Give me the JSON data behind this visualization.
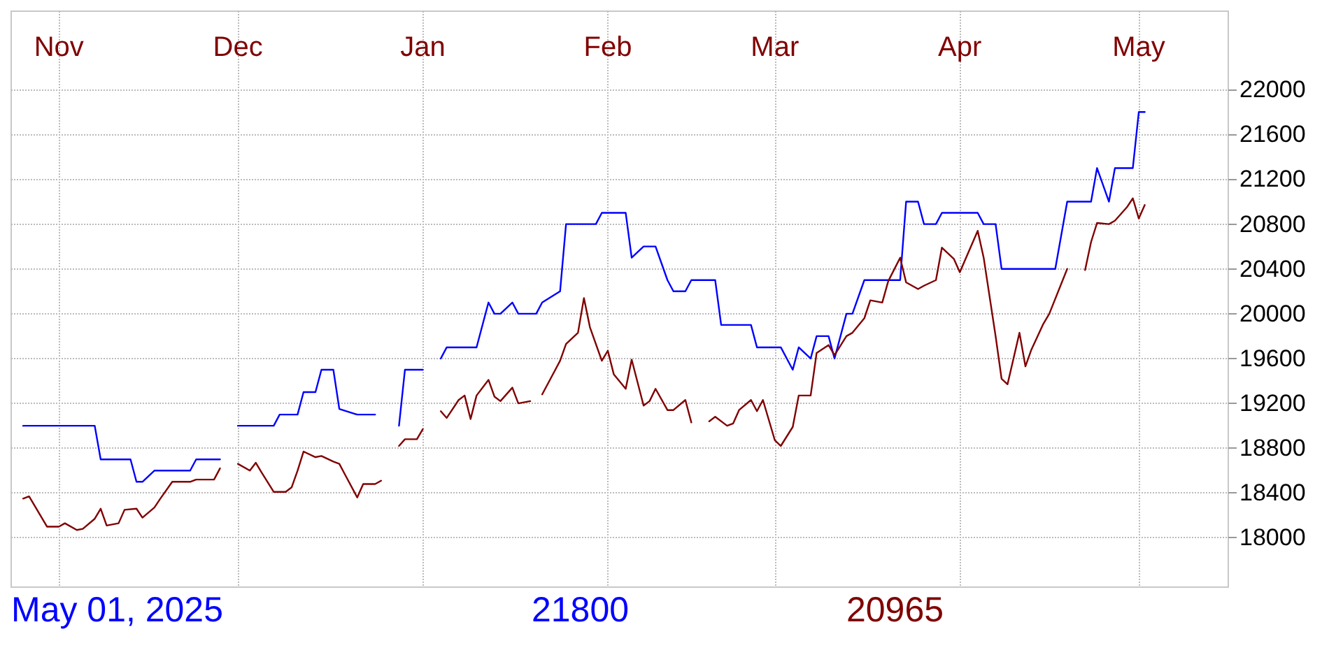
{
  "chart_data": {
    "type": "line",
    "xlim": [
      "2024-10-24",
      "2025-05-16"
    ],
    "ylim": [
      17560,
      22700
    ],
    "xticks": [
      {
        "value": "2024-11-01",
        "label": "Nov"
      },
      {
        "value": "2024-12-01",
        "label": "Dec"
      },
      {
        "value": "2025-01-01",
        "label": "Jan"
      },
      {
        "value": "2025-02-01",
        "label": "Feb"
      },
      {
        "value": "2025-03-01",
        "label": "Mar"
      },
      {
        "value": "2025-04-01",
        "label": "Apr"
      },
      {
        "value": "2025-05-01",
        "label": "May"
      }
    ],
    "yticks": [
      18000,
      18400,
      18800,
      19200,
      19600,
      20000,
      20400,
      20800,
      21200,
      21600,
      22000
    ],
    "grid": true,
    "marker": "none",
    "line_style": "solid",
    "annotations": [
      "May 01, 2025",
      "21800",
      "20965"
    ],
    "series": [
      {
        "color": "#0000ff",
        "x": [
          "2024-10-26",
          "2024-11-07",
          "2024-11-08",
          "2024-11-13",
          "2024-11-14",
          "2024-11-15",
          "2024-11-17",
          "2024-11-23",
          "2024-11-24",
          "2024-11-28",
          "2024-11-30",
          "2024-12-01",
          "2024-12-07",
          "2024-12-08",
          "2024-12-11",
          "2024-12-12",
          "2024-12-14",
          "2024-12-15",
          "2024-12-17",
          "2024-12-18",
          "2024-12-21",
          "2024-12-24",
          "2024-12-26",
          "2024-12-28",
          "2024-12-29",
          "2025-01-01",
          "2025-01-03",
          "2025-01-04",
          "2025-01-05",
          "2025-01-10",
          "2025-01-12",
          "2025-01-13",
          "2025-01-14",
          "2025-01-16",
          "2025-01-17",
          "2025-01-20",
          "2025-01-21",
          "2025-01-24",
          "2025-01-25",
          "2025-01-30",
          "2025-01-31",
          "2025-02-04",
          "2025-02-05",
          "2025-02-07",
          "2025-02-09",
          "2025-02-11",
          "2025-02-12",
          "2025-02-14",
          "2025-02-15",
          "2025-02-19",
          "2025-02-20",
          "2025-02-25",
          "2025-02-26",
          "2025-03-02",
          "2025-03-04",
          "2025-03-05",
          "2025-03-07",
          "2025-03-08",
          "2025-03-10",
          "2025-03-11",
          "2025-03-13",
          "2025-03-14",
          "2025-03-16",
          "2025-03-22",
          "2025-03-23",
          "2025-03-25",
          "2025-03-26",
          "2025-03-28",
          "2025-03-29",
          "2025-04-04",
          "2025-04-05",
          "2025-04-07",
          "2025-04-08",
          "2025-04-17",
          "2025-04-19",
          "2025-04-23",
          "2025-04-24",
          "2025-04-26",
          "2025-04-27",
          "2025-04-30",
          "2025-05-01",
          "2025-05-02"
        ],
        "values": [
          19000,
          19000,
          18700,
          18700,
          18500,
          18500,
          18600,
          18600,
          18700,
          18700,
          null,
          19000,
          19000,
          19100,
          19100,
          19300,
          19300,
          19500,
          19500,
          19150,
          19100,
          19100,
          null,
          19000,
          19500,
          19500,
          null,
          19600,
          19700,
          19700,
          20100,
          20000,
          20000,
          20100,
          20000,
          20000,
          20100,
          20200,
          20800,
          20800,
          20900,
          20900,
          20500,
          20600,
          20600,
          20300,
          20200,
          20200,
          20300,
          20300,
          19900,
          19900,
          19700,
          19700,
          19500,
          19700,
          19600,
          19800,
          19800,
          19600,
          20000,
          20000,
          20300,
          20300,
          21000,
          21000,
          20800,
          20800,
          20900,
          20900,
          20800,
          20800,
          20400,
          20400,
          21000,
          21000,
          21300,
          21000,
          21300,
          21300,
          21800,
          21800
        ]
      },
      {
        "color": "#800000",
        "x": [
          "2024-10-26",
          "2024-10-27",
          "2024-10-30",
          "2024-11-01",
          "2024-11-02",
          "2024-11-04",
          "2024-11-05",
          "2024-11-07",
          "2024-11-08",
          "2024-11-09",
          "2024-11-11",
          "2024-11-12",
          "2024-11-14",
          "2024-11-15",
          "2024-11-17",
          "2024-11-18",
          "2024-11-20",
          "2024-11-23",
          "2024-11-24",
          "2024-11-27",
          "2024-11-28",
          "2024-11-30",
          "2024-12-01",
          "2024-12-03",
          "2024-12-04",
          "2024-12-05",
          "2024-12-07",
          "2024-12-09",
          "2024-12-10",
          "2024-12-11",
          "2024-12-12",
          "2024-12-14",
          "2024-12-15",
          "2024-12-17",
          "2024-12-18",
          "2024-12-19",
          "2024-12-21",
          "2024-12-22",
          "2024-12-24",
          "2024-12-25",
          "2024-12-27",
          "2024-12-28",
          "2024-12-29",
          "2024-12-31",
          "2025-01-01",
          "2025-01-03",
          "2025-01-04",
          "2025-01-05",
          "2025-01-07",
          "2025-01-08",
          "2025-01-09",
          "2025-01-10",
          "2025-01-12",
          "2025-01-13",
          "2025-01-14",
          "2025-01-16",
          "2025-01-17",
          "2025-01-19",
          "2025-01-20",
          "2025-01-21",
          "2025-01-23",
          "2025-01-24",
          "2025-01-25",
          "2025-01-27",
          "2025-01-28",
          "2025-01-29",
          "2025-01-31",
          "2025-02-01",
          "2025-02-02",
          "2025-02-04",
          "2025-02-05",
          "2025-02-07",
          "2025-02-08",
          "2025-02-09",
          "2025-02-11",
          "2025-02-12",
          "2025-02-14",
          "2025-02-15",
          "2025-02-17",
          "2025-02-18",
          "2025-02-19",
          "2025-02-21",
          "2025-02-22",
          "2025-02-23",
          "2025-02-25",
          "2025-02-26",
          "2025-02-27",
          "2025-03-01",
          "2025-03-02",
          "2025-03-04",
          "2025-03-05",
          "2025-03-07",
          "2025-03-08",
          "2025-03-10",
          "2025-03-11",
          "2025-03-13",
          "2025-03-14",
          "2025-03-16",
          "2025-03-17",
          "2025-03-19",
          "2025-03-20",
          "2025-03-22",
          "2025-03-23",
          "2025-03-25",
          "2025-03-26",
          "2025-03-28",
          "2025-03-29",
          "2025-03-31",
          "2025-04-01",
          "2025-04-04",
          "2025-04-05",
          "2025-04-07",
          "2025-04-08",
          "2025-04-09",
          "2025-04-11",
          "2025-04-12",
          "2025-04-13",
          "2025-04-15",
          "2025-04-16",
          "2025-04-19",
          "2025-04-21",
          "2025-04-22",
          "2025-04-23",
          "2025-04-24",
          "2025-04-26",
          "2025-04-27",
          "2025-04-29",
          "2025-04-30",
          "2025-05-01",
          "2025-05-02"
        ],
        "values": [
          18350,
          18370,
          18100,
          18100,
          18130,
          18070,
          18080,
          18170,
          18260,
          18110,
          18130,
          18250,
          18260,
          18180,
          18270,
          18350,
          18500,
          18500,
          18520,
          18520,
          18620,
          null,
          18660,
          18600,
          18670,
          18580,
          18410,
          18410,
          18450,
          18600,
          18770,
          18720,
          18730,
          18680,
          18660,
          18560,
          18360,
          18480,
          18480,
          18510,
          null,
          18820,
          18880,
          18880,
          18970,
          null,
          19130,
          19070,
          19230,
          19270,
          19060,
          19270,
          19410,
          19260,
          19220,
          19340,
          19200,
          19220,
          null,
          19280,
          19480,
          19580,
          19730,
          19830,
          20140,
          19880,
          19580,
          19670,
          19460,
          19330,
          19590,
          19180,
          19220,
          19330,
          19140,
          19140,
          19230,
          19030,
          null,
          19040,
          19080,
          19000,
          19020,
          19140,
          19230,
          19130,
          19230,
          18870,
          18820,
          18990,
          19270,
          19270,
          19650,
          19720,
          19630,
          19800,
          19830,
          19960,
          20120,
          20100,
          20290,
          20500,
          20280,
          20220,
          20250,
          20300,
          20590,
          20490,
          20370,
          20740,
          20500,
          19800,
          19420,
          19370,
          19830,
          19530,
          19680,
          19910,
          20000,
          20400,
          null,
          20390,
          20640,
          20810,
          20800,
          20830,
          20950,
          21030,
          20850,
          20970
        ]
      }
    ]
  }
}
